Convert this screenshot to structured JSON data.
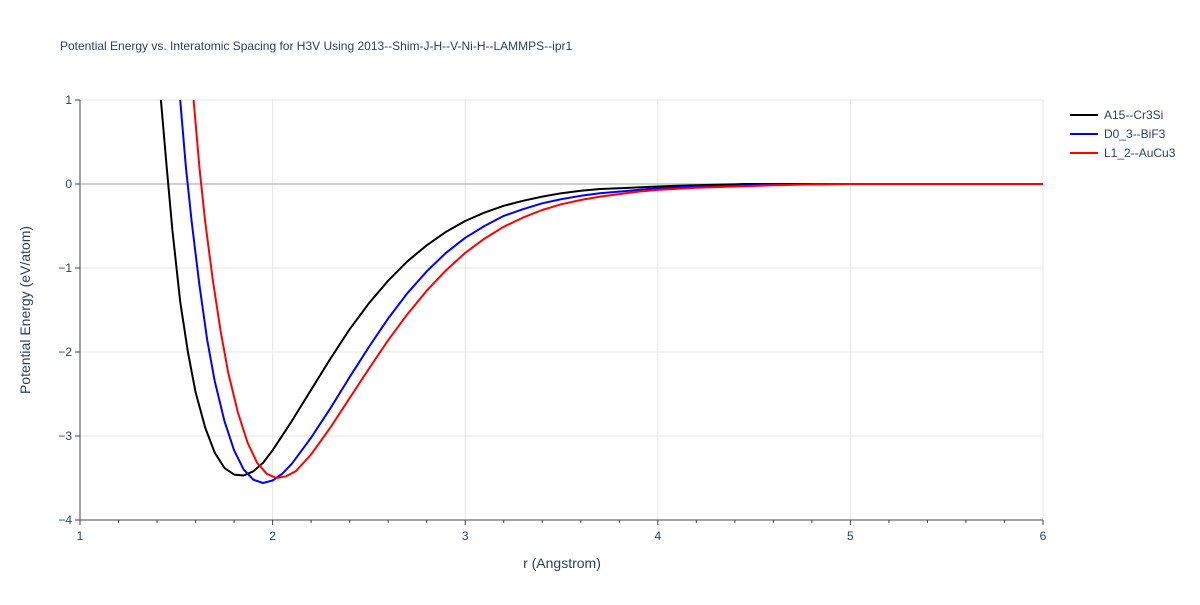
{
  "chart_data": {
    "type": "line",
    "title": "Potential Energy vs. Interatomic Spacing for H3V Using 2013--Shim-J-H--V-Ni-H--LAMMPS--ipr1",
    "xlabel": "r (Angstrom)",
    "ylabel": "Potential Energy (eV/atom)",
    "xlim": [
      1,
      6
    ],
    "ylim": [
      -4,
      1
    ],
    "xticks": [
      1,
      2,
      3,
      4,
      5,
      6
    ],
    "xtick_labels": [
      "1",
      "2",
      "3",
      "4",
      "5",
      "6"
    ],
    "yticks": [
      -4,
      -3,
      -2,
      -1,
      0,
      1
    ],
    "ytick_labels": [
      "−4",
      "−3",
      "−2",
      "−1",
      "0",
      "1"
    ],
    "grid": true,
    "legend_position": "top-right",
    "series": [
      {
        "name": "A15--Cr3Si",
        "color": "#000000",
        "x": [
          1.42,
          1.45,
          1.48,
          1.52,
          1.56,
          1.6,
          1.65,
          1.7,
          1.75,
          1.8,
          1.85,
          1.9,
          1.95,
          2.0,
          2.1,
          2.2,
          2.3,
          2.4,
          2.5,
          2.6,
          2.7,
          2.8,
          2.9,
          3.0,
          3.1,
          3.2,
          3.3,
          3.4,
          3.5,
          3.6,
          3.7,
          3.8,
          3.9,
          4.0,
          4.1,
          4.2,
          4.3,
          4.4,
          4.45,
          4.5,
          4.6,
          4.7,
          4.8,
          4.9,
          5.0,
          5.5,
          6.0
        ],
        "y": [
          1.0,
          0.2,
          -0.55,
          -1.4,
          -2.0,
          -2.48,
          -2.9,
          -3.2,
          -3.38,
          -3.46,
          -3.47,
          -3.42,
          -3.32,
          -3.17,
          -2.82,
          -2.45,
          -2.08,
          -1.73,
          -1.42,
          -1.15,
          -0.92,
          -0.73,
          -0.57,
          -0.44,
          -0.34,
          -0.26,
          -0.2,
          -0.15,
          -0.11,
          -0.08,
          -0.06,
          -0.05,
          -0.04,
          -0.03,
          -0.02,
          -0.015,
          -0.01,
          -0.005,
          0.0,
          0.0,
          0.0,
          0.0,
          0.0,
          0.0,
          0.0,
          0.0,
          0.0
        ]
      },
      {
        "name": "D0_3--BiF3",
        "color": "#0000ff",
        "x": [
          1.52,
          1.55,
          1.58,
          1.62,
          1.66,
          1.7,
          1.75,
          1.8,
          1.85,
          1.9,
          1.95,
          2.0,
          2.05,
          2.1,
          2.2,
          2.3,
          2.4,
          2.5,
          2.6,
          2.7,
          2.8,
          2.9,
          3.0,
          3.1,
          3.2,
          3.3,
          3.4,
          3.5,
          3.6,
          3.7,
          3.8,
          3.9,
          4.0,
          4.2,
          4.4,
          4.6,
          4.8,
          5.0,
          5.5,
          6.0
        ],
        "y": [
          1.0,
          0.2,
          -0.45,
          -1.2,
          -1.85,
          -2.35,
          -2.82,
          -3.17,
          -3.4,
          -3.52,
          -3.56,
          -3.53,
          -3.45,
          -3.33,
          -3.02,
          -2.67,
          -2.3,
          -1.94,
          -1.6,
          -1.3,
          -1.04,
          -0.82,
          -0.64,
          -0.5,
          -0.38,
          -0.3,
          -0.23,
          -0.18,
          -0.14,
          -0.11,
          -0.09,
          -0.07,
          -0.05,
          -0.03,
          -0.02,
          -0.01,
          -0.005,
          0.0,
          0.0,
          0.0
        ]
      },
      {
        "name": "L1_2--AuCu3",
        "color": "#ff0000",
        "x": [
          1.59,
          1.62,
          1.65,
          1.69,
          1.73,
          1.77,
          1.82,
          1.87,
          1.92,
          1.97,
          2.02,
          2.07,
          2.12,
          2.2,
          2.3,
          2.4,
          2.5,
          2.6,
          2.7,
          2.8,
          2.9,
          3.0,
          3.1,
          3.2,
          3.3,
          3.4,
          3.5,
          3.6,
          3.7,
          3.8,
          3.9,
          4.0,
          4.2,
          4.4,
          4.6,
          4.8,
          5.0,
          5.5,
          6.0
        ],
        "y": [
          1.0,
          0.2,
          -0.45,
          -1.15,
          -1.75,
          -2.25,
          -2.72,
          -3.08,
          -3.32,
          -3.45,
          -3.5,
          -3.48,
          -3.42,
          -3.22,
          -2.9,
          -2.55,
          -2.2,
          -1.86,
          -1.55,
          -1.27,
          -1.03,
          -0.82,
          -0.65,
          -0.51,
          -0.4,
          -0.31,
          -0.24,
          -0.19,
          -0.15,
          -0.12,
          -0.09,
          -0.07,
          -0.045,
          -0.03,
          -0.015,
          -0.005,
          0.0,
          0.0,
          0.0
        ]
      }
    ]
  }
}
